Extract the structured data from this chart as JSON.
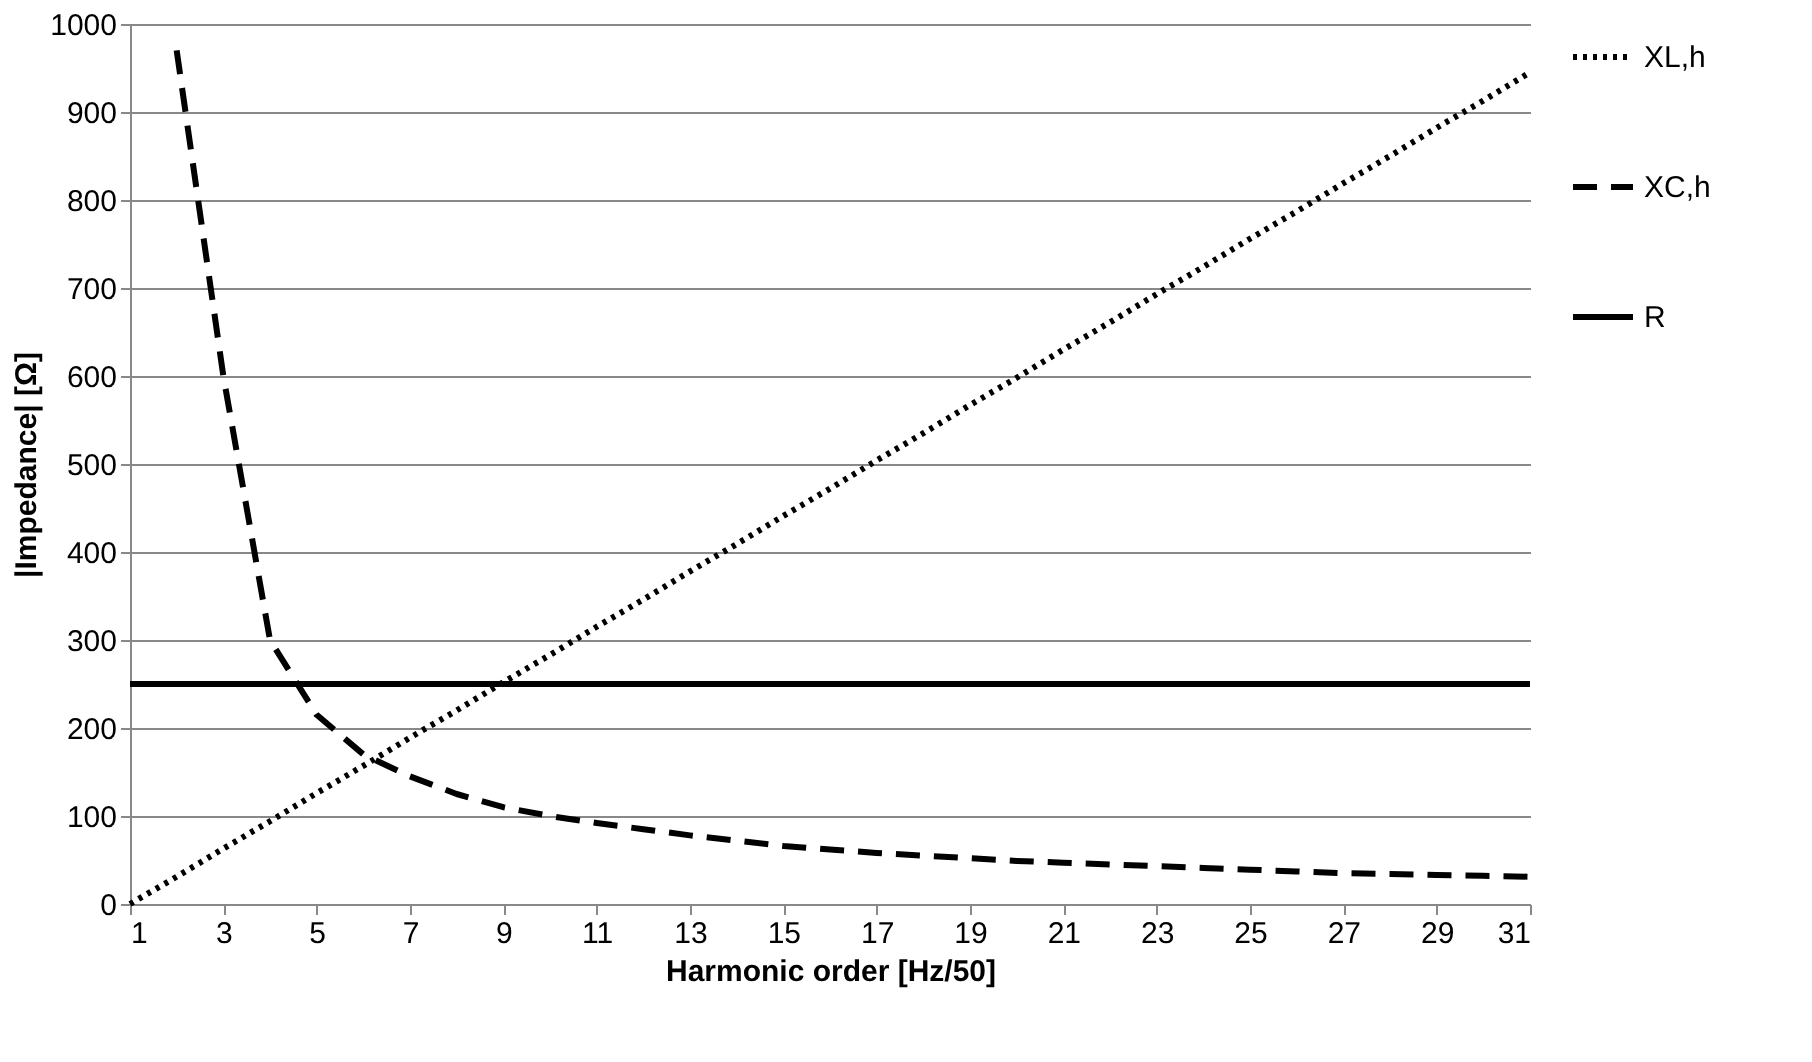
{
  "chart_data": {
    "type": "line",
    "xlabel": "Harmonic order [Hz/50]",
    "ylabel": "|Impedance| [Ω]",
    "x": [
      1,
      2,
      3,
      4,
      5,
      6,
      7,
      8,
      9,
      10,
      11,
      12,
      13,
      14,
      15,
      16,
      17,
      18,
      19,
      20,
      21,
      22,
      23,
      24,
      25,
      26,
      27,
      28,
      29,
      30,
      31
    ],
    "xlim": [
      1,
      31
    ],
    "xticks": [
      1,
      3,
      5,
      7,
      9,
      11,
      13,
      15,
      17,
      19,
      21,
      23,
      25,
      27,
      29,
      31
    ],
    "ylim": [
      0,
      1000
    ],
    "yticks": [
      0,
      100,
      200,
      300,
      400,
      500,
      600,
      700,
      800,
      900,
      1000
    ],
    "grid": "y",
    "legend": "right",
    "series": [
      {
        "name": "XL,h",
        "color": "#000000",
        "line_style": "dotted",
        "values": [
          0,
          31,
          63,
          94,
          126,
          157,
          189,
          220,
          252,
          283,
          315,
          346,
          378,
          409,
          441,
          472,
          504,
          535,
          567,
          598,
          630,
          661,
          693,
          724,
          756,
          787,
          819,
          850,
          882,
          913,
          945
        ]
      },
      {
        "name": "XC,h",
        "color": "#000000",
        "line_style": "dashed",
        "values": [
          null,
          970,
          600,
          300,
          215,
          170,
          145,
          125,
          110,
          100,
          92,
          85,
          78,
          72,
          66,
          62,
          58,
          55,
          52,
          49,
          47,
          45,
          43,
          41,
          39,
          37,
          35,
          34,
          33,
          32,
          31
        ]
      },
      {
        "name": "R",
        "color": "#000000",
        "line_style": "solid",
        "values": [
          250,
          250,
          250,
          250,
          250,
          250,
          250,
          250,
          250,
          250,
          250,
          250,
          250,
          250,
          250,
          250,
          250,
          250,
          250,
          250,
          250,
          250,
          250,
          250,
          250,
          250,
          250,
          250,
          250,
          250,
          250
        ]
      }
    ]
  }
}
